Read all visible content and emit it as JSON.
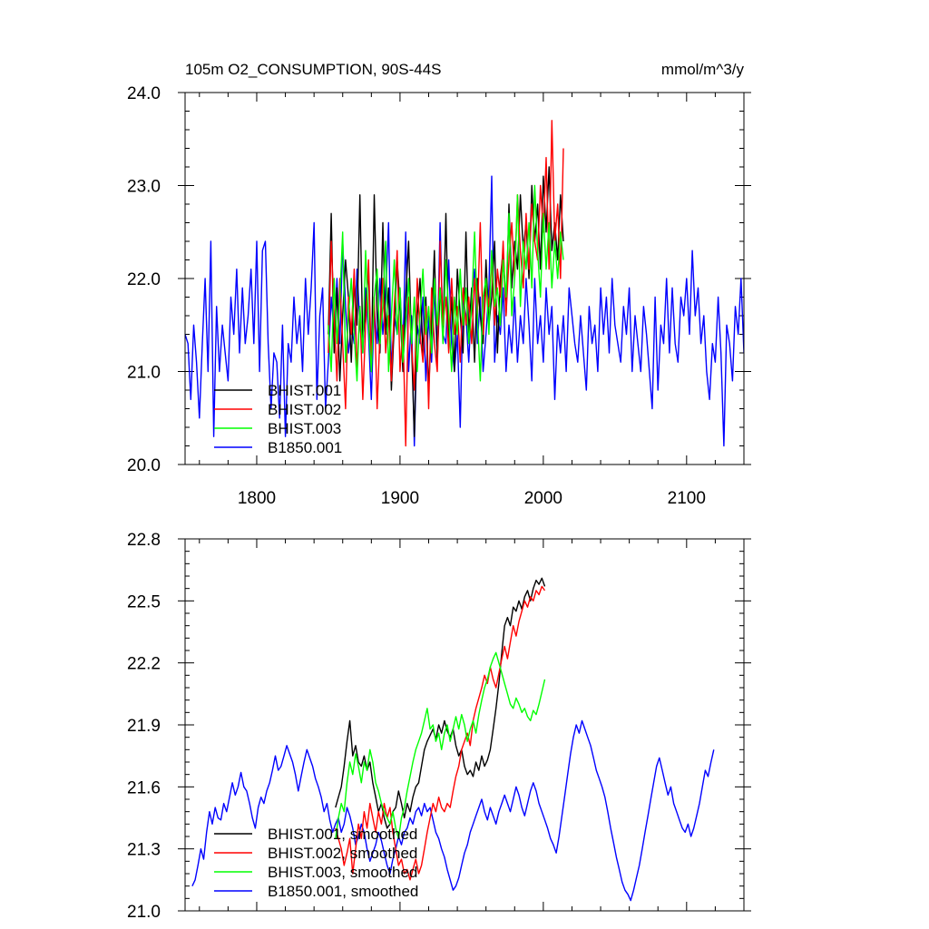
{
  "chart_data": [
    {
      "type": "line",
      "title": "105m O2_CONSUMPTION, 90S-44S",
      "units": "mmol/m^3/y",
      "xlim": [
        1750,
        2140
      ],
      "ylim": [
        20.0,
        24.0
      ],
      "x_ticks": [
        1800,
        1900,
        2000,
        2100
      ],
      "x_tick_labels": [
        "1800",
        "1900",
        "2000",
        "2100"
      ],
      "y_ticks": [
        20.0,
        21.0,
        22.0,
        23.0,
        24.0
      ],
      "y_tick_labels": [
        "20.0",
        "21.0",
        "22.0",
        "23.0",
        "24.0"
      ],
      "grid": false,
      "legend_position": "bottom-left",
      "series": [
        {
          "name": "BHIST.001",
          "color": "#000000",
          "x_start": 1850,
          "x_end": 2014,
          "x_step": 2,
          "values": [
            21.4,
            22.7,
            21.2,
            21.9,
            20.9,
            21.6,
            22.2,
            21.8,
            21.1,
            22.0,
            21.5,
            22.9,
            21.3,
            21.7,
            22.1,
            21.0,
            22.9,
            21.6,
            21.2,
            22.6,
            21.4,
            21.9,
            20.8,
            21.5,
            22.2,
            21.7,
            21.0,
            21.8,
            22.4,
            21.3,
            20.3,
            21.6,
            22.0,
            21.2,
            21.8,
            20.8,
            21.5,
            22.3,
            21.1,
            21.9,
            21.4,
            22.7,
            21.3,
            21.8,
            21.0,
            22.1,
            21.6,
            21.2,
            22.5,
            21.4,
            21.9,
            21.1,
            22.0,
            21.6,
            21.3,
            22.2,
            21.5,
            21.8,
            22.4,
            21.2,
            22.0,
            22.3,
            21.6,
            22.8,
            21.9,
            22.4,
            22.1,
            22.9,
            22.3,
            22.6,
            22.0,
            23.0,
            22.4,
            22.8,
            22.1,
            23.1,
            22.5,
            23.2,
            22.3,
            22.6,
            22.2,
            22.9,
            22.4
          ]
        },
        {
          "name": "BHIST.002",
          "color": "#ff0000",
          "x_start": 1850,
          "x_end": 2014,
          "x_step": 2,
          "values": [
            21.2,
            22.4,
            21.6,
            20.9,
            22.0,
            21.3,
            20.6,
            21.8,
            21.4,
            22.1,
            21.0,
            21.7,
            20.7,
            21.5,
            22.2,
            21.1,
            21.8,
            20.6,
            21.4,
            22.0,
            21.2,
            21.6,
            20.9,
            21.7,
            22.3,
            21.0,
            21.5,
            20.2,
            21.8,
            21.3,
            20.8,
            22.0,
            21.4,
            21.1,
            21.7,
            20.6,
            21.9,
            21.3,
            21.0,
            22.4,
            21.5,
            21.8,
            21.2,
            22.0,
            21.4,
            21.7,
            21.1,
            21.9,
            21.5,
            21.8,
            21.3,
            22.0,
            21.6,
            22.6,
            21.4,
            21.9,
            21.7,
            22.2,
            21.5,
            22.1,
            21.8,
            22.4,
            21.6,
            22.2,
            22.6,
            22.0,
            22.9,
            22.3,
            21.9,
            22.7,
            22.1,
            22.8,
            22.4,
            22.2,
            23.0,
            22.5,
            23.3,
            22.1,
            23.7,
            22.4,
            22.8,
            22.0,
            23.4
          ]
        },
        {
          "name": "BHIST.003",
          "color": "#00ff00",
          "x_start": 1850,
          "x_end": 2014,
          "x_step": 2,
          "values": [
            21.5,
            21.0,
            22.0,
            21.3,
            21.8,
            22.5,
            21.1,
            21.6,
            22.0,
            21.4,
            20.9,
            21.7,
            21.2,
            22.3,
            21.5,
            21.0,
            21.8,
            22.1,
            21.3,
            21.7,
            22.4,
            21.0,
            21.6,
            22.2,
            21.4,
            21.9,
            21.1,
            21.5,
            22.0,
            21.3,
            21.8,
            21.0,
            21.6,
            22.1,
            21.4,
            21.7,
            21.2,
            22.0,
            21.5,
            21.9,
            21.3,
            22.2,
            21.6,
            21.0,
            21.8,
            21.4,
            22.1,
            21.5,
            21.9,
            21.3,
            21.7,
            22.5,
            21.6,
            20.9,
            21.8,
            22.0,
            21.4,
            22.3,
            21.7,
            21.9,
            21.5,
            22.2,
            21.8,
            22.7,
            21.6,
            22.0,
            22.9,
            21.7,
            22.4,
            22.1,
            22.6,
            21.9,
            23.0,
            22.3,
            21.8,
            22.7,
            22.1,
            22.6,
            21.9,
            22.4,
            22.0,
            22.5,
            22.2
          ]
        },
        {
          "name": "B1850.001",
          "color": "#0000ff",
          "x_start": 1750,
          "x_end": 2140,
          "x_step": 2,
          "values": [
            21.4,
            21.3,
            20.7,
            21.5,
            21.1,
            20.5,
            21.3,
            22.0,
            21.0,
            22.4,
            20.3,
            21.7,
            21.0,
            21.5,
            21.2,
            20.9,
            21.8,
            21.4,
            22.1,
            21.2,
            21.9,
            21.3,
            21.6,
            22.1,
            21.3,
            22.4,
            21.0,
            22.3,
            22.4,
            21.3,
            20.6,
            21.2,
            21.1,
            20.5,
            21.5,
            20.3,
            21.3,
            21.1,
            21.8,
            21.3,
            21.6,
            21.0,
            22.0,
            21.4,
            21.9,
            22.6,
            20.7,
            21.6,
            21.9,
            20.6,
            21.1,
            21.8,
            21.4,
            22.0,
            21.3,
            22.4,
            21.7,
            21.2,
            21.5,
            21.3,
            22.1,
            21.5,
            21.2,
            21.9,
            21.4,
            20.7,
            21.7,
            21.3,
            22.0,
            21.4,
            21.8,
            22.6,
            21.0,
            21.6,
            21.4,
            21.9,
            21.2,
            22.5,
            21.0,
            21.6,
            20.2,
            21.5,
            21.3,
            21.8,
            20.9,
            21.6,
            21.1,
            21.9,
            21.2,
            22.6,
            21.4,
            21.3,
            22.2,
            21.3,
            21.0,
            21.4,
            20.4,
            21.8,
            21.6,
            21.1,
            21.8,
            22.1,
            21.3,
            21.8,
            21.0,
            21.4,
            21.9,
            23.1,
            21.1,
            21.6,
            21.4,
            21.9,
            21.0,
            21.5,
            21.2,
            21.8,
            21.1,
            21.6,
            21.3,
            22.0,
            21.5,
            20.9,
            22.0,
            21.3,
            21.6,
            21.1,
            21.9,
            21.4,
            21.7,
            20.7,
            21.5,
            21.2,
            21.6,
            21.0,
            21.9,
            21.6,
            21.3,
            21.1,
            21.6,
            21.2,
            20.8,
            21.7,
            21.3,
            21.5,
            21.0,
            21.9,
            21.4,
            21.8,
            21.2,
            22.0,
            21.5,
            21.3,
            21.1,
            21.7,
            21.4,
            21.9,
            21.0,
            21.6,
            21.3,
            21.0,
            21.7,
            21.4,
            21.0,
            20.6,
            21.8,
            20.8,
            21.5,
            21.3,
            22.0,
            21.2,
            21.9,
            21.3,
            21.1,
            21.8,
            21.6,
            22.0,
            21.4,
            22.3,
            21.6,
            21.9,
            21.3,
            21.6,
            21.0,
            20.7,
            21.3,
            21.1,
            21.8,
            21.2,
            20.2,
            21.5,
            21.3,
            20.9,
            21.7,
            21.4,
            22.0,
            21.2,
            21.5,
            21.7,
            20.6,
            21.0,
            21.9,
            21.6,
            21.8,
            21.4,
            22.0,
            21.1,
            21.8,
            21.5,
            20.9,
            21.4,
            21.8,
            21.3,
            21.0,
            22.1,
            21.4,
            20.8,
            21.6,
            22.1,
            21.3,
            21.9,
            21.1,
            21.6,
            22.0,
            21.3,
            22.1,
            21.9,
            22.6
          ]
        }
      ]
    },
    {
      "type": "line",
      "xlim": [
        1750,
        2140
      ],
      "ylim": [
        21.0,
        22.8
      ],
      "y_ticks": [
        21.0,
        21.3,
        21.6,
        21.9,
        22.2,
        22.5,
        22.8
      ],
      "y_tick_labels": [
        "21.0",
        "21.3",
        "21.6",
        "21.9",
        "22.2",
        "22.5",
        "22.8"
      ],
      "grid": false,
      "legend_position": "bottom-left",
      "series": [
        {
          "name": "BHIST.001, smoothed",
          "color": "#000000",
          "x_start": 1855,
          "x_end": 2009,
          "x_step": 2,
          "values": [
            21.5,
            21.55,
            21.6,
            21.7,
            21.82,
            21.92,
            21.75,
            21.8,
            21.72,
            21.7,
            21.75,
            21.68,
            21.72,
            21.62,
            21.55,
            21.48,
            21.52,
            21.45,
            21.4,
            21.42,
            21.48,
            21.5,
            21.58,
            21.52,
            21.45,
            21.52,
            21.48,
            21.55,
            21.6,
            21.62,
            21.7,
            21.78,
            21.82,
            21.85,
            21.88,
            21.83,
            21.9,
            21.86,
            21.92,
            21.87,
            21.84,
            21.88,
            21.8,
            21.75,
            21.78,
            21.7,
            21.66,
            21.68,
            21.65,
            21.72,
            21.68,
            21.75,
            21.7,
            21.73,
            21.78,
            21.88,
            21.98,
            22.1,
            22.25,
            22.38,
            22.42,
            22.38,
            22.47,
            22.45,
            22.5,
            22.46,
            22.52,
            22.55,
            22.5,
            22.56,
            22.6,
            22.58,
            22.61,
            22.57
          ]
        },
        {
          "name": "BHIST.002, smoothed",
          "color": "#ff0000",
          "x_start": 1855,
          "x_end": 2009,
          "x_step": 2,
          "values": [
            21.4,
            21.35,
            21.3,
            21.22,
            21.28,
            21.35,
            21.18,
            21.3,
            21.42,
            21.35,
            21.48,
            21.4,
            21.52,
            21.45,
            21.38,
            21.48,
            21.42,
            21.52,
            21.45,
            21.5,
            21.38,
            21.3,
            21.22,
            21.25,
            21.18,
            21.2,
            21.15,
            21.2,
            21.25,
            21.18,
            21.22,
            21.3,
            21.38,
            21.45,
            21.52,
            21.48,
            21.55,
            21.5,
            21.48,
            21.52,
            21.5,
            21.58,
            21.65,
            21.7,
            21.78,
            21.82,
            21.86,
            21.8,
            21.92,
            21.98,
            22.03,
            22.08,
            22.14,
            22.1,
            22.18,
            22.12,
            22.08,
            22.15,
            22.22,
            22.28,
            22.22,
            22.3,
            22.38,
            22.33,
            22.4,
            22.45,
            22.5,
            22.47,
            22.52,
            22.5,
            22.55,
            22.53,
            22.57,
            22.55
          ]
        },
        {
          "name": "BHIST.003, smoothed",
          "color": "#00ff00",
          "x_start": 1855,
          "x_end": 2009,
          "x_step": 2,
          "values": [
            21.35,
            21.45,
            21.52,
            21.48,
            21.62,
            21.72,
            21.66,
            21.76,
            21.7,
            21.62,
            21.72,
            21.68,
            21.78,
            21.72,
            21.62,
            21.58,
            21.52,
            21.48,
            21.45,
            21.42,
            21.48,
            21.4,
            21.35,
            21.45,
            21.5,
            21.58,
            21.65,
            21.72,
            21.78,
            21.82,
            21.86,
            21.92,
            21.98,
            21.88,
            21.9,
            21.82,
            21.86,
            21.78,
            21.86,
            21.9,
            21.82,
            21.88,
            21.94,
            21.88,
            21.95,
            21.9,
            21.82,
            21.88,
            21.92,
            21.86,
            21.95,
            22.02,
            22.08,
            22.12,
            22.18,
            22.22,
            22.25,
            22.2,
            22.15,
            22.1,
            22.05,
            22.0,
            21.98,
            22.03,
            22.0,
            21.96,
            21.98,
            21.94,
            21.92,
            21.97,
            21.95,
            22.0,
            22.06,
            22.12
          ]
        },
        {
          "name": "B1850.001, smoothed",
          "color": "#0000ff",
          "x_start": 1755,
          "x_end": 2135,
          "x_step": 2,
          "values": [
            21.12,
            21.15,
            21.22,
            21.3,
            21.25,
            21.38,
            21.48,
            21.42,
            21.5,
            21.45,
            21.44,
            21.52,
            21.48,
            21.55,
            21.62,
            21.56,
            21.6,
            21.67,
            21.6,
            21.58,
            21.52,
            21.45,
            21.4,
            21.5,
            21.55,
            21.52,
            21.58,
            21.62,
            21.68,
            21.75,
            21.68,
            21.7,
            21.75,
            21.8,
            21.76,
            21.72,
            21.66,
            21.58,
            21.65,
            21.72,
            21.78,
            21.74,
            21.7,
            21.64,
            21.6,
            21.55,
            21.48,
            21.52,
            21.44,
            21.38,
            21.42,
            21.45,
            21.38,
            21.42,
            21.5,
            21.46,
            21.4,
            21.32,
            21.36,
            21.42,
            21.38,
            21.3,
            21.24,
            21.28,
            21.32,
            21.38,
            21.34,
            21.28,
            21.22,
            21.18,
            21.25,
            21.3,
            21.36,
            21.32,
            21.38,
            21.4,
            21.45,
            21.42,
            21.48,
            21.5,
            21.46,
            21.52,
            21.48,
            21.5,
            21.44,
            21.38,
            21.35,
            21.3,
            21.26,
            21.2,
            21.15,
            21.1,
            21.12,
            21.16,
            21.22,
            21.28,
            21.32,
            21.38,
            21.42,
            21.46,
            21.5,
            21.54,
            21.48,
            21.44,
            21.5,
            21.46,
            21.42,
            21.48,
            21.52,
            21.56,
            21.52,
            21.48,
            21.54,
            21.6,
            21.56,
            21.5,
            21.46,
            21.52,
            21.58,
            21.62,
            21.58,
            21.52,
            21.48,
            21.44,
            21.4,
            21.35,
            21.32,
            21.28,
            21.36,
            21.46,
            21.56,
            21.66,
            21.76,
            21.84,
            21.9,
            21.86,
            21.92,
            21.88,
            21.84,
            21.8,
            21.74,
            21.68,
            21.64,
            21.6,
            21.55,
            21.48,
            21.4,
            21.33,
            21.26,
            21.2,
            21.14,
            21.1,
            21.08,
            21.05,
            21.1,
            21.16,
            21.22,
            21.3,
            21.38,
            21.46,
            21.54,
            21.62,
            21.7,
            21.74,
            21.68,
            21.62,
            21.56,
            21.6,
            21.52,
            21.48,
            21.44,
            21.4,
            21.38,
            21.42,
            21.36,
            21.4,
            21.46,
            21.52,
            21.6,
            21.68,
            21.65,
            21.72,
            21.78
          ]
        }
      ]
    }
  ]
}
